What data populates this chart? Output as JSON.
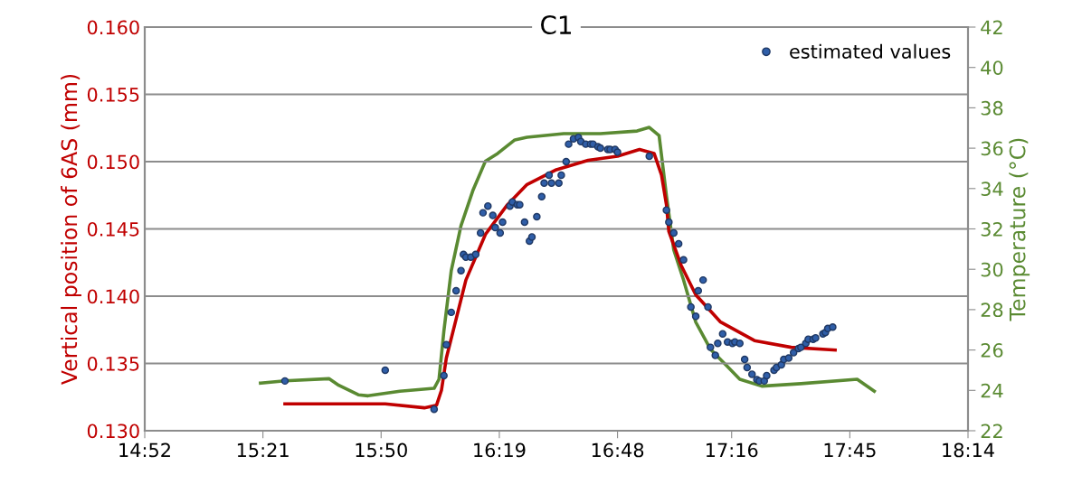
{
  "chart_data": {
    "type": "scatter",
    "title": "C1",
    "ylabel": "Vertical position of 6AS (mm)",
    "y2label": "Temperature (°C)",
    "xlim": [
      14.8667,
      18.2333
    ],
    "xticks": [
      {
        "value": 14.8667,
        "label": "14:52"
      },
      {
        "value": 15.35,
        "label": "15:21"
      },
      {
        "value": 15.8333,
        "label": "15:50"
      },
      {
        "value": 16.3167,
        "label": "16:19"
      },
      {
        "value": 16.8,
        "label": "16:48"
      },
      {
        "value": 17.2667,
        "label": "17:16"
      },
      {
        "value": 17.75,
        "label": "17:45"
      },
      {
        "value": 18.2333,
        "label": "18:14"
      }
    ],
    "ylim": [
      0.13,
      0.16
    ],
    "yticks": [
      {
        "value": 0.13,
        "label": "0.130"
      },
      0.135,
      {
        "value": 0.14,
        "label": "0.140"
      },
      0.145,
      {
        "value": 0.15,
        "label": "0.150"
      },
      0.155,
      {
        "value": 0.16,
        "label": "0.160"
      }
    ],
    "y2lim": [
      22,
      42
    ],
    "y2ticks": [
      22,
      24,
      26,
      28,
      30,
      32,
      34,
      36,
      38,
      40,
      42
    ],
    "grid": "y",
    "legend": "top right",
    "line_style": "solid",
    "series": [
      {
        "marker": "circle",
        "name": "estimated values",
        "color": "#2f5ea8",
        "x": [
          15.44,
          15.85,
          16.05,
          16.09,
          16.1,
          16.12,
          16.14,
          16.16,
          16.17,
          16.18,
          16.2,
          16.22,
          16.24,
          16.25,
          16.27,
          16.29,
          16.3,
          16.32,
          16.33,
          16.36,
          16.37,
          16.39,
          16.4,
          16.42,
          16.44,
          16.45,
          16.47,
          16.49,
          16.5,
          16.52,
          16.53,
          16.56,
          16.57,
          16.59,
          16.6,
          16.62,
          16.64,
          16.65,
          16.67,
          16.69,
          16.7,
          16.72,
          16.73,
          16.76,
          16.77,
          16.79,
          16.8,
          16.93,
          17.0,
          17.01,
          17.03,
          17.05,
          17.07,
          17.1,
          17.12,
          17.13,
          17.15,
          17.17,
          17.18,
          17.2,
          17.21,
          17.23,
          17.25,
          17.27,
          17.28,
          17.3,
          17.32,
          17.33,
          17.35,
          17.37,
          17.38,
          17.4,
          17.41,
          17.44,
          17.45,
          17.47,
          17.48,
          17.5,
          17.52,
          17.54,
          17.55,
          17.57,
          17.58,
          17.6,
          17.61,
          17.64,
          17.65,
          17.66,
          17.68
        ],
        "values": [
          0.1337,
          0.1345,
          0.1316,
          0.1341,
          0.1364,
          0.1388,
          0.1404,
          0.1419,
          0.1431,
          0.1429,
          0.1429,
          0.1431,
          0.1447,
          0.1462,
          0.1467,
          0.146,
          0.1451,
          0.1447,
          0.1455,
          0.1467,
          0.147,
          0.1468,
          0.1468,
          0.1455,
          0.1441,
          0.1444,
          0.1459,
          0.1474,
          0.1484,
          0.149,
          0.1484,
          0.1484,
          0.149,
          0.15,
          0.1513,
          0.1517,
          0.1518,
          0.1515,
          0.1513,
          0.1513,
          0.1513,
          0.1511,
          0.151,
          0.1509,
          0.1509,
          0.1509,
          0.1507,
          0.1504,
          0.1464,
          0.1455,
          0.1447,
          0.1439,
          0.1427,
          0.1392,
          0.1385,
          0.1404,
          0.1412,
          0.1392,
          0.1362,
          0.1356,
          0.1365,
          0.1372,
          0.1366,
          0.1365,
          0.1366,
          0.1365,
          0.1353,
          0.1347,
          0.1342,
          0.1338,
          0.1337,
          0.1337,
          0.1341,
          0.1345,
          0.1347,
          0.1349,
          0.1353,
          0.1354,
          0.1358,
          0.1361,
          0.1362,
          0.1365,
          0.1368,
          0.1368,
          0.1369,
          0.1372,
          0.1373,
          0.1376,
          0.1377
        ]
      },
      {
        "type": "line",
        "color": "#c00000",
        "x": [
          15.44,
          15.85,
          16.01,
          16.06,
          16.08,
          16.1,
          16.14,
          16.18,
          16.26,
          16.35,
          16.43,
          16.55,
          16.68,
          16.8,
          16.89,
          16.95,
          16.98,
          17.0,
          17.01,
          17.06,
          17.12,
          17.22,
          17.36,
          17.51,
          17.69
        ],
        "values": [
          0.132,
          0.132,
          0.1317,
          0.1319,
          0.133,
          0.1354,
          0.1383,
          0.1412,
          0.1446,
          0.1468,
          0.1483,
          0.1494,
          0.1501,
          0.1504,
          0.1509,
          0.1506,
          0.149,
          0.1468,
          0.1448,
          0.1423,
          0.1401,
          0.1381,
          0.1367,
          0.1362,
          0.136
        ]
      },
      {
        "type": "line",
        "axis": "y2",
        "color": "#5a8a32",
        "x": [
          15.34,
          15.44,
          15.62,
          15.66,
          15.74,
          15.78,
          15.91,
          16.05,
          16.07,
          16.09,
          16.12,
          16.16,
          16.21,
          16.26,
          16.31,
          16.38,
          16.43,
          16.58,
          16.73,
          16.88,
          16.93,
          16.97,
          17.0,
          17.03,
          17.07,
          17.12,
          17.18,
          17.24,
          17.3,
          17.39,
          17.55,
          17.78,
          17.85
        ],
        "values": [
          24.36,
          24.47,
          24.58,
          24.25,
          23.78,
          23.73,
          23.96,
          24.1,
          24.55,
          26.94,
          29.92,
          32.16,
          33.95,
          35.36,
          35.74,
          36.41,
          36.54,
          36.72,
          36.72,
          36.85,
          37.03,
          36.63,
          33.65,
          30.96,
          29.47,
          27.38,
          26.04,
          25.3,
          24.55,
          24.21,
          24.33,
          24.55,
          23.96
        ]
      }
    ]
  }
}
